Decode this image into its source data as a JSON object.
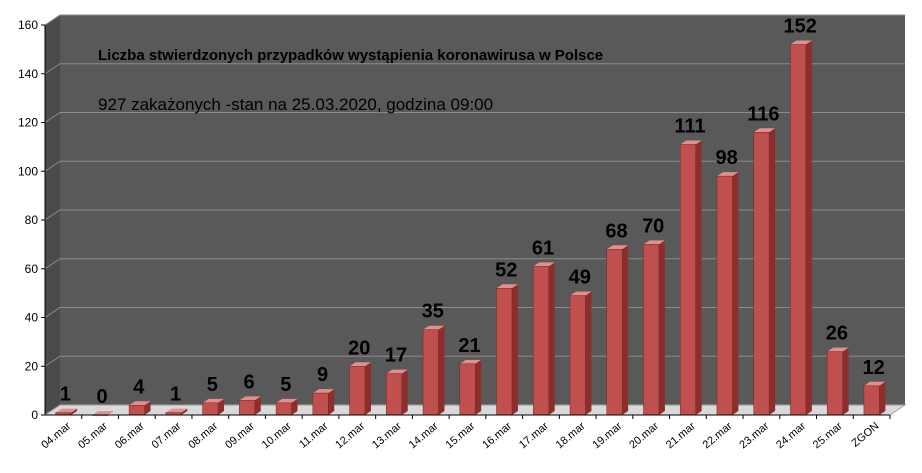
{
  "chart_data": {
    "type": "bar",
    "title": "Liczba stwierdzonych przypadków wystąpienia koronawirusa w Polsce",
    "subtitle": "927 zakażonych  -stan  na 25.03.2020, godzina  09:00",
    "xlabel": "",
    "ylabel": "",
    "categories": [
      "04.mar",
      "05.mar",
      "06.mar",
      "07.mar",
      "08.mar",
      "09.mar",
      "10.mar",
      "11.mar",
      "12.mar",
      "13.mar",
      "14.mar",
      "15.mar",
      "16.mar",
      "17.mar",
      "18.mar",
      "19.mar",
      "20.mar",
      "21.mar",
      "22.mar",
      "23.mar",
      "24.mar",
      "25.mar",
      "ZGON"
    ],
    "values": [
      1,
      0,
      4,
      1,
      5,
      6,
      5,
      9,
      20,
      17,
      35,
      21,
      52,
      61,
      49,
      68,
      70,
      111,
      98,
      116,
      152,
      26,
      12
    ],
    "ylim": [
      0,
      160
    ],
    "yticks": [
      0,
      20,
      40,
      60,
      80,
      100,
      120,
      140,
      160
    ],
    "grid": true,
    "legend": "none",
    "colors": {
      "bar_front": "#c0504d",
      "bar_side": "#8c2f2c",
      "bar_top": "#e0908d",
      "plot_background": "#595959",
      "floor": "#d9d9d9",
      "gridline": "#8c8c8c"
    }
  }
}
